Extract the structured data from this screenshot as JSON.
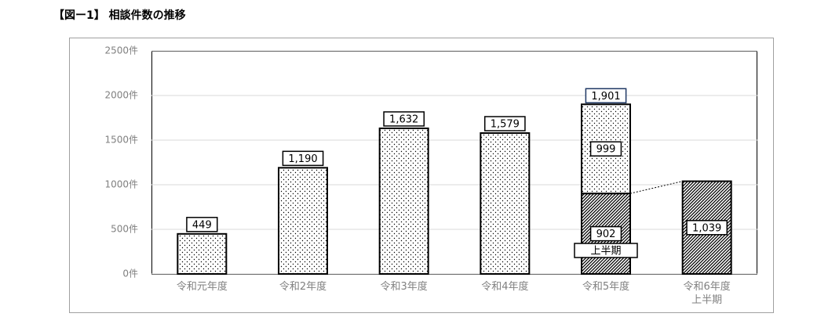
{
  "chart_data": {
    "type": "bar",
    "stacked": true,
    "title": "【図ー1】 相談件数の推移",
    "categories": [
      "令和元年度",
      "令和2年度",
      "令和3年度",
      "令和4年度",
      "令和5年度",
      "令和6年度\n上半期"
    ],
    "series": [
      {
        "name": "上半期",
        "pattern": "hatch",
        "color": "#000000",
        "values": [
          null,
          null,
          null,
          null,
          902,
          1039
        ],
        "value_labels": [
          null,
          null,
          null,
          null,
          "902",
          "1,039"
        ]
      },
      {
        "pattern": "dots",
        "color": "#000000",
        "values": [
          449,
          1190,
          1632,
          1579,
          999,
          null
        ],
        "value_labels": [
          "449",
          "1,190",
          "1,632",
          "1,579",
          "999",
          null
        ]
      }
    ],
    "totals": [
      null,
      null,
      null,
      null,
      {
        "value": 1901,
        "label": "1,901"
      },
      null
    ],
    "ylim": [
      0,
      2500
    ],
    "yticks": [
      {
        "value": 0,
        "label": "0件"
      },
      {
        "value": 500,
        "label": "500件"
      },
      {
        "value": 1000,
        "label": "1000件"
      },
      {
        "value": 1500,
        "label": "1500件"
      },
      {
        "value": 2000,
        "label": "2000件"
      },
      {
        "value": 2500,
        "label": "2500件"
      }
    ],
    "grid": true
  }
}
